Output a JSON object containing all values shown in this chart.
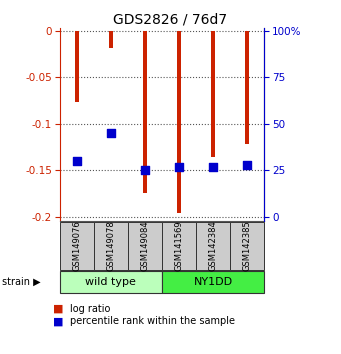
{
  "title": "GDS2826 / 76d7",
  "samples": [
    "GSM149076",
    "GSM149078",
    "GSM149084",
    "GSM141569",
    "GSM142384",
    "GSM142385"
  ],
  "log_ratios": [
    -0.076,
    -0.018,
    -0.175,
    -0.196,
    -0.136,
    -0.122
  ],
  "percentile_ranks": [
    30,
    45,
    25,
    27,
    27,
    28
  ],
  "ylim_left": [
    -0.205,
    0.003
  ],
  "left_ticks": [
    0,
    -0.05,
    -0.1,
    -0.15,
    -0.2
  ],
  "right_ticks": [
    0,
    25,
    50,
    75,
    100
  ],
  "bar_color": "#cc2200",
  "dot_color": "#0000cc",
  "wild_type_count": 3,
  "ny1dd_count": 3,
  "wild_type_color": "#bbffbb",
  "ny1dd_color": "#44ee44",
  "sample_box_color": "#cccccc",
  "left_axis_color": "#cc2200",
  "right_axis_color": "#0000cc",
  "bar_width": 0.12,
  "dot_size": 28,
  "strain_label": "strain",
  "wild_type_label": "wild type",
  "ny1dd_label": "NY1DD",
  "legend_log_ratio": "log ratio",
  "legend_percentile": "percentile rank within the sample"
}
